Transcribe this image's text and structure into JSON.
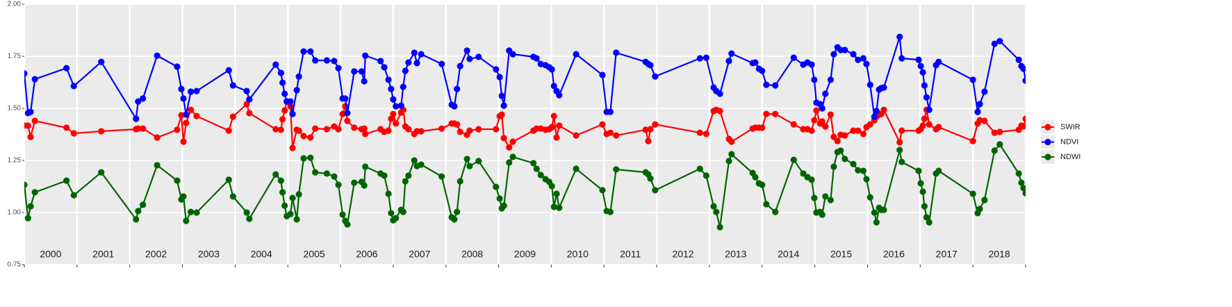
{
  "chart_data": {
    "type": "line",
    "x": [
      2000.0,
      2000.07,
      2000.12,
      2000.2,
      2000.8,
      2000.94,
      2001.46,
      2002.12,
      2002.16,
      2002.25,
      2002.52,
      2002.9,
      2002.98,
      2003.02,
      2003.07,
      2003.16,
      2003.27,
      2003.88,
      2003.96,
      2004.22,
      2004.27,
      2004.77,
      2004.87,
      2004.9,
      2004.94,
      2004.98,
      2005.05,
      2005.09,
      2005.17,
      2005.21,
      2005.3,
      2005.43,
      2005.52,
      2005.74,
      2005.88,
      2005.96,
      2006.04,
      2006.09,
      2006.13,
      2006.26,
      2006.4,
      2006.45,
      2006.47,
      2006.76,
      2006.83,
      2006.91,
      2006.96,
      2007.0,
      2007.05,
      2007.15,
      2007.19,
      2007.23,
      2007.29,
      2007.4,
      2007.45,
      2007.53,
      2007.92,
      2008.11,
      2008.16,
      2008.21,
      2008.27,
      2008.4,
      2008.45,
      2008.62,
      2008.95,
      2009.02,
      2009.06,
      2009.1,
      2009.2,
      2009.27,
      2009.66,
      2009.72,
      2009.8,
      2009.89,
      2009.96,
      2010.01,
      2010.05,
      2010.1,
      2010.15,
      2010.47,
      2010.97,
      2011.05,
      2011.12,
      2011.23,
      2011.79,
      2011.84,
      2011.88,
      2011.97,
      2012.82,
      2012.94,
      2013.08,
      2013.13,
      2013.2,
      2013.37,
      2013.42,
      2013.82,
      2013.87,
      2013.94,
      2014.0,
      2014.08,
      2014.25,
      2014.6,
      2014.78,
      2014.86,
      2014.94,
      2014.99,
      2015.03,
      2015.1,
      2015.14,
      2015.2,
      2015.3,
      2015.36,
      2015.43,
      2015.49,
      2015.57,
      2015.73,
      2015.82,
      2015.92,
      2015.98,
      2016.05,
      2016.13,
      2016.17,
      2016.22,
      2016.26,
      2016.31,
      2016.61,
      2016.65,
      2016.97,
      2017.01,
      2017.05,
      2017.08,
      2017.12,
      2017.17,
      2017.3,
      2017.35,
      2018.0,
      2018.09,
      2018.13,
      2018.22,
      2018.41,
      2018.51,
      2018.87,
      2018.92,
      2018.96,
      2019.0
    ],
    "series": [
      {
        "name": "SWIR",
        "color": "#ff0000",
        "values": [
          1.417,
          1.417,
          1.363,
          1.44,
          1.407,
          1.38,
          1.39,
          1.4,
          1.403,
          1.403,
          1.36,
          1.397,
          1.467,
          1.34,
          1.43,
          1.493,
          1.463,
          1.393,
          1.46,
          1.52,
          1.477,
          1.4,
          1.397,
          1.447,
          1.49,
          1.533,
          1.51,
          1.31,
          1.397,
          1.393,
          1.367,
          1.36,
          1.403,
          1.4,
          1.413,
          1.4,
          1.473,
          1.51,
          1.44,
          1.407,
          1.4,
          1.403,
          1.377,
          1.4,
          1.387,
          1.393,
          1.45,
          1.473,
          1.427,
          1.48,
          1.493,
          1.413,
          1.4,
          1.377,
          1.39,
          1.39,
          1.403,
          1.427,
          1.427,
          1.423,
          1.387,
          1.373,
          1.393,
          1.4,
          1.4,
          1.463,
          1.47,
          1.357,
          1.313,
          1.34,
          1.393,
          1.403,
          1.403,
          1.397,
          1.4,
          1.41,
          1.463,
          1.36,
          1.417,
          1.37,
          1.423,
          1.377,
          1.383,
          1.37,
          1.397,
          1.343,
          1.4,
          1.423,
          1.383,
          1.377,
          1.487,
          1.493,
          1.487,
          1.353,
          1.34,
          1.403,
          1.407,
          1.407,
          1.407,
          1.473,
          1.473,
          1.423,
          1.4,
          1.4,
          1.393,
          1.443,
          1.49,
          1.427,
          1.437,
          1.413,
          1.47,
          1.363,
          1.343,
          1.373,
          1.37,
          1.393,
          1.393,
          1.377,
          1.41,
          1.423,
          1.443,
          1.46,
          1.47,
          1.473,
          1.493,
          1.337,
          1.393,
          1.393,
          1.4,
          1.417,
          1.45,
          1.493,
          1.423,
          1.4,
          1.41,
          1.343,
          1.427,
          1.443,
          1.44,
          1.383,
          1.387,
          1.397,
          1.417,
          1.413,
          1.45
        ]
      },
      {
        "name": "NDVI",
        "color": "#0000ff",
        "values": [
          1.667,
          1.477,
          1.483,
          1.64,
          1.693,
          1.607,
          1.723,
          1.45,
          1.533,
          1.547,
          1.753,
          1.7,
          1.593,
          1.547,
          1.47,
          1.58,
          1.583,
          1.683,
          1.61,
          1.583,
          1.543,
          1.71,
          1.67,
          1.623,
          1.57,
          1.533,
          1.533,
          1.473,
          1.587,
          1.653,
          1.773,
          1.773,
          1.73,
          1.73,
          1.727,
          1.693,
          1.547,
          1.547,
          1.477,
          1.677,
          1.677,
          1.63,
          1.753,
          1.727,
          1.697,
          1.637,
          1.593,
          1.543,
          1.51,
          1.513,
          1.603,
          1.68,
          1.72,
          1.767,
          1.717,
          1.76,
          1.713,
          1.517,
          1.51,
          1.593,
          1.703,
          1.777,
          1.737,
          1.747,
          1.687,
          1.65,
          1.56,
          1.513,
          1.777,
          1.76,
          1.747,
          1.74,
          1.713,
          1.707,
          1.697,
          1.687,
          1.607,
          1.583,
          1.563,
          1.76,
          1.66,
          1.483,
          1.483,
          1.767,
          1.723,
          1.713,
          1.707,
          1.653,
          1.74,
          1.743,
          1.6,
          1.583,
          1.57,
          1.727,
          1.763,
          1.717,
          1.72,
          1.69,
          1.68,
          1.613,
          1.61,
          1.743,
          1.71,
          1.72,
          1.71,
          1.637,
          1.527,
          1.52,
          1.5,
          1.57,
          1.637,
          1.76,
          1.793,
          1.78,
          1.78,
          1.76,
          1.733,
          1.74,
          1.713,
          1.613,
          1.46,
          1.487,
          1.59,
          1.597,
          1.6,
          1.843,
          1.74,
          1.733,
          1.703,
          1.673,
          1.61,
          1.553,
          1.493,
          1.707,
          1.723,
          1.637,
          1.483,
          1.52,
          1.58,
          1.81,
          1.823,
          1.733,
          1.703,
          1.69,
          1.633
        ]
      },
      {
        "name": "NDWI",
        "color": "#006400",
        "values": [
          1.133,
          0.973,
          1.03,
          1.097,
          1.153,
          1.083,
          1.193,
          0.967,
          1.007,
          1.037,
          1.227,
          1.153,
          1.063,
          1.077,
          0.96,
          1.003,
          1.0,
          1.157,
          1.077,
          1.0,
          0.97,
          1.183,
          1.153,
          1.097,
          1.033,
          0.983,
          0.993,
          1.07,
          0.967,
          1.087,
          1.26,
          1.263,
          1.193,
          1.187,
          1.173,
          1.133,
          0.99,
          0.96,
          0.943,
          1.143,
          1.147,
          1.13,
          1.22,
          1.187,
          1.177,
          1.09,
          0.997,
          0.963,
          0.973,
          1.013,
          1.003,
          1.15,
          1.177,
          1.25,
          1.223,
          1.23,
          1.173,
          0.977,
          0.967,
          1.003,
          1.15,
          1.257,
          1.223,
          1.247,
          1.123,
          1.067,
          1.02,
          1.033,
          1.24,
          1.267,
          1.237,
          1.21,
          1.18,
          1.16,
          1.147,
          1.127,
          1.027,
          1.09,
          1.023,
          1.21,
          1.107,
          1.007,
          1.003,
          1.207,
          1.193,
          1.183,
          1.163,
          1.107,
          1.21,
          1.177,
          1.03,
          1.003,
          0.93,
          1.247,
          1.28,
          1.19,
          1.17,
          1.14,
          1.133,
          1.04,
          1.003,
          1.253,
          1.187,
          1.17,
          1.157,
          1.07,
          1.0,
          1.003,
          0.99,
          1.077,
          1.06,
          1.22,
          1.29,
          1.297,
          1.257,
          1.233,
          1.203,
          1.2,
          1.16,
          1.073,
          1.0,
          0.953,
          1.023,
          1.013,
          1.013,
          1.3,
          1.243,
          1.2,
          1.14,
          1.1,
          1.03,
          0.977,
          0.953,
          1.187,
          1.2,
          1.09,
          0.997,
          1.017,
          1.06,
          1.297,
          1.327,
          1.187,
          1.143,
          1.117,
          1.093
        ]
      }
    ],
    "xlim": [
      2000,
      2019
    ],
    "xticks": [
      {
        "value": 2000.5,
        "label": "2000"
      },
      {
        "value": 2001.5,
        "label": "2001"
      },
      {
        "value": 2002.5,
        "label": "2002"
      },
      {
        "value": 2003.5,
        "label": "2003"
      },
      {
        "value": 2004.5,
        "label": "2004"
      },
      {
        "value": 2005.5,
        "label": "2005"
      },
      {
        "value": 2006.5,
        "label": "2006"
      },
      {
        "value": 2007.5,
        "label": "2007"
      },
      {
        "value": 2008.5,
        "label": "2008"
      },
      {
        "value": 2009.5,
        "label": "2009"
      },
      {
        "value": 2010.5,
        "label": "2010"
      },
      {
        "value": 2011.5,
        "label": "2011"
      },
      {
        "value": 2012.5,
        "label": "2012"
      },
      {
        "value": 2013.5,
        "label": "2013"
      },
      {
        "value": 2014.5,
        "label": "2014"
      },
      {
        "value": 2015.5,
        "label": "2015"
      },
      {
        "value": 2016.5,
        "label": "2016"
      },
      {
        "value": 2017.5,
        "label": "2017"
      },
      {
        "value": 2018.5,
        "label": "2018"
      }
    ],
    "xbreaks": [
      2000,
      2001,
      2002,
      2003,
      2004,
      2005,
      2006,
      2007,
      2008,
      2009,
      2010,
      2011,
      2012,
      2013,
      2014,
      2015,
      2016,
      2017,
      2018,
      2019
    ],
    "ylim": [
      0.75,
      2.0
    ],
    "yticks": [
      0.75,
      {
        "value": 1,
        "label": "1.00"
      },
      1.25,
      {
        "value": 1.5,
        "label": "1.50"
      },
      1.75,
      {
        "value": 2,
        "label": "2.00"
      }
    ],
    "grid": true,
    "legend": "right"
  }
}
